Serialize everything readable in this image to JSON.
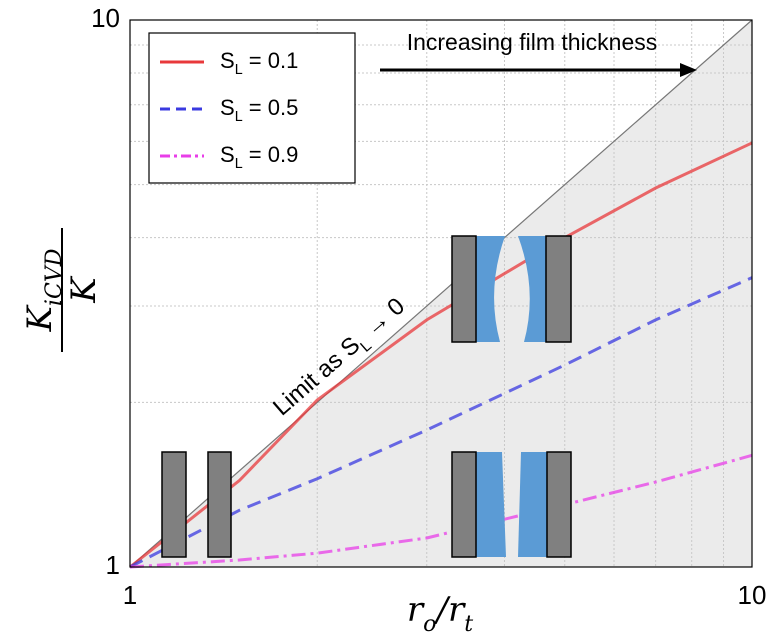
{
  "chart_data": {
    "type": "line",
    "ylabel": {
      "numerator": "KiCVD",
      "denominator": "K"
    },
    "xlabel": "ro/rt",
    "x": [
      1,
      1.5,
      2,
      3,
      5,
      7,
      10
    ],
    "series": [
      {
        "name": "SL = 0.1",
        "color": "#e8383b",
        "linestyle": "solid",
        "values": [
          1,
          1.44,
          2.02,
          2.83,
          4.0,
          4.93,
          5.96
        ]
      },
      {
        "name": "SL = 0.5",
        "color": "#3a3ae0",
        "linestyle": "dashed",
        "values": [
          1,
          1.27,
          1.45,
          1.78,
          2.34,
          2.83,
          3.38
        ]
      },
      {
        "name": "SL = 0.9",
        "color": "#e83ee8",
        "linestyle": "dashdot",
        "values": [
          1,
          1.03,
          1.06,
          1.13,
          1.3,
          1.43,
          1.6
        ]
      }
    ],
    "limit_line": {
      "x": [
        1,
        10
      ],
      "values": [
        1,
        10
      ],
      "color": "#777777",
      "label": "Limit as SL → 0"
    },
    "arrow_annotation": "Increasing film thickness",
    "log_x": true,
    "log_y": true,
    "xlim": [
      1,
      10
    ],
    "ylim": [
      1,
      10
    ],
    "xticks": [
      1,
      10
    ],
    "yticks": [
      1,
      10
    ],
    "xminorticks": [
      2,
      3,
      4,
      5,
      6,
      7,
      8,
      9
    ],
    "yminorticks": [
      2,
      3,
      4,
      5,
      6,
      7,
      8,
      9
    ],
    "grid": true,
    "legend": "upper left"
  }
}
